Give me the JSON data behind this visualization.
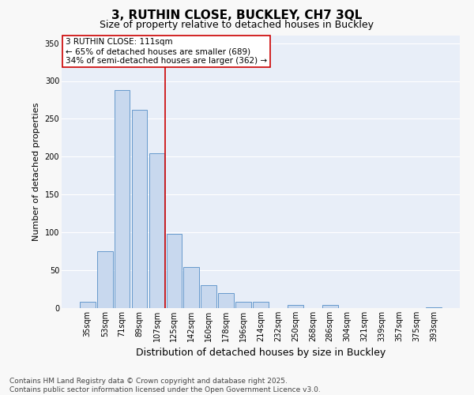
{
  "title": "3, RUTHIN CLOSE, BUCKLEY, CH7 3QL",
  "subtitle": "Size of property relative to detached houses in Buckley",
  "xlabel": "Distribution of detached houses by size in Buckley",
  "ylabel": "Number of detached properties",
  "categories": [
    "35sqm",
    "53sqm",
    "71sqm",
    "89sqm",
    "107sqm",
    "125sqm",
    "142sqm",
    "160sqm",
    "178sqm",
    "196sqm",
    "214sqm",
    "232sqm",
    "250sqm",
    "268sqm",
    "286sqm",
    "304sqm",
    "321sqm",
    "339sqm",
    "357sqm",
    "375sqm",
    "393sqm"
  ],
  "values": [
    8,
    75,
    288,
    262,
    205,
    98,
    54,
    30,
    20,
    8,
    8,
    0,
    4,
    0,
    4,
    0,
    0,
    0,
    0,
    0,
    1
  ],
  "bar_color": "#c8d8ee",
  "bar_edge_color": "#6699cc",
  "vline_color": "#cc0000",
  "vline_x_index": 4,
  "annotation_text": "3 RUTHIN CLOSE: 111sqm\n← 65% of detached houses are smaller (689)\n34% of semi-detached houses are larger (362) →",
  "annotation_box_facecolor": "#ffffff",
  "annotation_box_edgecolor": "#cc0000",
  "ylim": [
    0,
    360
  ],
  "yticks": [
    0,
    50,
    100,
    150,
    200,
    250,
    300,
    350
  ],
  "fig_background": "#f8f8f8",
  "plot_background": "#e8eef8",
  "grid_color": "#ffffff",
  "title_fontsize": 11,
  "subtitle_fontsize": 9,
  "tick_fontsize": 7,
  "ylabel_fontsize": 8,
  "xlabel_fontsize": 9,
  "annotation_fontsize": 7.5,
  "footer_fontsize": 6.5,
  "footer": "Contains HM Land Registry data © Crown copyright and database right 2025.\nContains public sector information licensed under the Open Government Licence v3.0."
}
